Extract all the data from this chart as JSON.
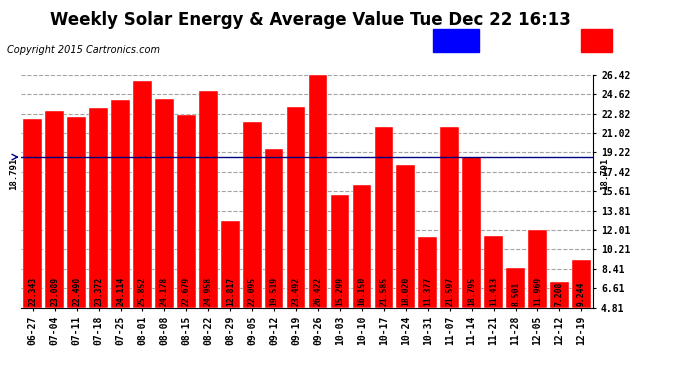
{
  "title": "Weekly Solar Energy & Average Value Tue Dec 22 16:13",
  "copyright": "Copyright 2015 Cartronics.com",
  "categories": [
    "06-27",
    "07-04",
    "07-11",
    "07-18",
    "07-25",
    "08-01",
    "08-08",
    "08-15",
    "08-22",
    "08-29",
    "09-05",
    "09-12",
    "09-19",
    "09-26",
    "10-03",
    "10-10",
    "10-17",
    "10-24",
    "10-31",
    "11-07",
    "11-14",
    "11-21",
    "11-28",
    "12-05",
    "12-12",
    "12-19"
  ],
  "values": [
    22.343,
    23.089,
    22.49,
    23.372,
    24.114,
    25.852,
    24.178,
    22.679,
    24.958,
    12.817,
    22.095,
    19.519,
    23.492,
    26.422,
    15.299,
    16.15,
    21.585,
    18.02,
    11.377,
    21.597,
    18.795,
    11.413,
    8.501,
    11.969,
    7.208,
    9.244
  ],
  "average_value": 18.791,
  "bar_color": "#FF0000",
  "average_line_color": "#000080",
  "ylim_min": 4.81,
  "ylim_max": 26.42,
  "yticks": [
    4.81,
    6.61,
    8.41,
    10.21,
    12.01,
    13.81,
    15.61,
    17.42,
    19.22,
    21.02,
    22.82,
    24.62,
    26.42
  ],
  "background_color": "#FFFFFF",
  "grid_color": "#999999",
  "bar_text_color": "#000000",
  "legend_avg_color": "#0000FF",
  "legend_daily_color": "#FF0000",
  "title_fontsize": 12,
  "copyright_fontsize": 7,
  "tick_fontsize": 7,
  "value_fontsize": 5.8
}
